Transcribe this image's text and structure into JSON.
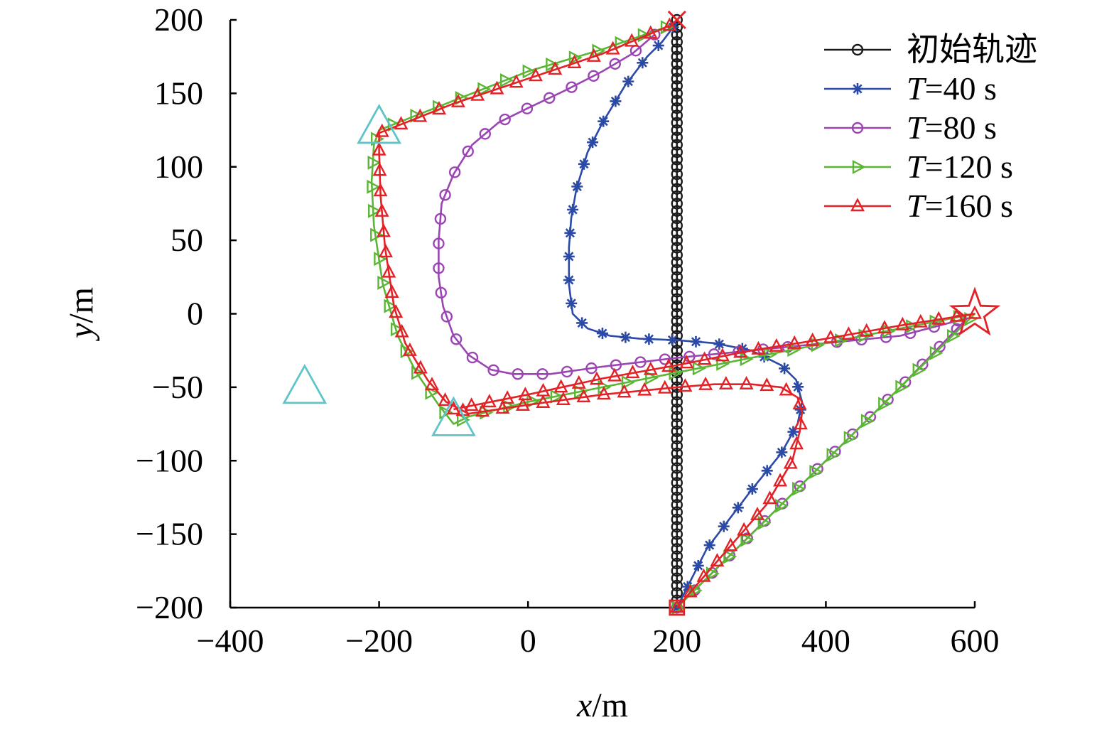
{
  "chart_data": {
    "type": "line",
    "xlabel": {
      "var": "x",
      "unit": "/m"
    },
    "ylabel": {
      "var": "y",
      "unit": "/m"
    },
    "xlim": [
      -400,
      600
    ],
    "ylim": [
      -200,
      200
    ],
    "xticks": [
      -400,
      -200,
      0,
      200,
      400,
      600
    ],
    "yticks": [
      -200,
      -150,
      -100,
      -50,
      0,
      50,
      100,
      150,
      200
    ],
    "xtick_labels": [
      "−400",
      "−200",
      "0",
      "200",
      "400",
      "600"
    ],
    "ytick_labels": [
      "−200",
      "−150",
      "−100",
      "−50",
      "0",
      "50",
      "100",
      "150",
      "200"
    ],
    "grid": false,
    "legend_position": "top-right",
    "series": [
      {
        "name": "初始轨迹",
        "legend_label": "初始轨迹",
        "legend_var": "",
        "legend_rest": "",
        "color": "#1a1a1a",
        "marker": "circle",
        "path": [
          [
            200,
            -200
          ],
          [
            200,
            200
          ]
        ],
        "marker_count": 81
      },
      {
        "name": "T=40 s",
        "legend_label": "",
        "legend_var": "T",
        "legend_rest": "=40 s",
        "color": "#2b4aa8",
        "marker": "asterisk",
        "path": [
          [
            200,
            -200
          ],
          [
            240,
            -160
          ],
          [
            300,
            -120
          ],
          [
            340,
            -95
          ],
          [
            362,
            -75
          ],
          [
            368,
            -60
          ],
          [
            360,
            -45
          ],
          [
            340,
            -35
          ],
          [
            300,
            -25
          ],
          [
            250,
            -20
          ],
          [
            200,
            -18
          ],
          [
            150,
            -17
          ],
          [
            110,
            -15
          ],
          [
            80,
            -10
          ],
          [
            60,
            0
          ],
          [
            55,
            20
          ],
          [
            55,
            45
          ],
          [
            58,
            65
          ],
          [
            65,
            85
          ],
          [
            80,
            110
          ],
          [
            100,
            130
          ],
          [
            130,
            155
          ],
          [
            160,
            175
          ],
          [
            180,
            185
          ],
          [
            195,
            195
          ]
        ],
        "marker_count": 36
      },
      {
        "name": "T=80 s",
        "legend_label": "",
        "legend_var": "T",
        "legend_rest": "=80 s",
        "color": "#9b44b3",
        "marker": "circle",
        "path": [
          [
            200,
            -200
          ],
          [
            250,
            -175
          ],
          [
            300,
            -150
          ],
          [
            400,
            -100
          ],
          [
            500,
            -50
          ],
          [
            590,
            -3
          ],
          [
            500,
            -15
          ],
          [
            400,
            -20
          ],
          [
            300,
            -25
          ],
          [
            200,
            -30
          ],
          [
            100,
            -36
          ],
          [
            30,
            -41
          ],
          [
            -20,
            -41
          ],
          [
            -50,
            -38
          ],
          [
            -80,
            -28
          ],
          [
            -100,
            -15
          ],
          [
            -114,
            5
          ],
          [
            -120,
            25
          ],
          [
            -120,
            50
          ],
          [
            -116,
            75
          ],
          [
            -100,
            95
          ],
          [
            -75,
            115
          ],
          [
            -40,
            130
          ],
          [
            0,
            140
          ],
          [
            50,
            152
          ],
          [
            100,
            165
          ],
          [
            140,
            177
          ],
          [
            170,
            190
          ]
        ],
        "marker_count": 56
      },
      {
        "name": "T=120 s",
        "legend_label": "",
        "legend_var": "T",
        "legend_rest": "=120 s",
        "color": "#5ab634",
        "marker": "triangle-right",
        "path": [
          [
            200,
            -200
          ],
          [
            400,
            -100
          ],
          [
            600,
            0
          ],
          [
            400,
            -20
          ],
          [
            200,
            -40
          ],
          [
            0,
            -60
          ],
          [
            -80,
            -70
          ],
          [
            -100,
            -75
          ],
          [
            -120,
            -62
          ],
          [
            -150,
            -40
          ],
          [
            -175,
            -15
          ],
          [
            -195,
            20
          ],
          [
            -207,
            60
          ],
          [
            -210,
            90
          ],
          [
            -207,
            115
          ],
          [
            -200,
            125
          ],
          [
            -100,
            145
          ],
          [
            0,
            165
          ],
          [
            100,
            180
          ],
          [
            185,
            195
          ]
        ],
        "marker_count": 66
      },
      {
        "name": "T=160 s",
        "legend_label": "",
        "legend_var": "T",
        "legend_rest": "=160 s",
        "color": "#e32228",
        "marker": "triangle",
        "path": [
          [
            200,
            -200
          ],
          [
            260,
            -165
          ],
          [
            320,
            -130
          ],
          [
            355,
            -100
          ],
          [
            365,
            -80
          ],
          [
            368,
            -67
          ],
          [
            362,
            -57
          ],
          [
            340,
            -50
          ],
          [
            300,
            -48
          ],
          [
            250,
            -48
          ],
          [
            200,
            -50
          ],
          [
            100,
            -55
          ],
          [
            0,
            -62
          ],
          [
            -80,
            -68
          ],
          [
            -110,
            -60
          ],
          [
            -135,
            -45
          ],
          [
            -165,
            -20
          ],
          [
            -180,
            5
          ],
          [
            -192,
            45
          ],
          [
            -198,
            80
          ],
          [
            -200,
            110
          ],
          [
            -200,
            123
          ],
          [
            -100,
            143
          ],
          [
            0,
            160
          ],
          [
            100,
            177
          ],
          [
            190,
            196
          ]
        ],
        "marker_count": 60
      },
      {
        "name": "T=160 s return",
        "legend_label": "",
        "legend_var": "",
        "legend_rest": "",
        "color": "#e32228",
        "marker": "triangle",
        "path": [
          [
            -100,
            -65
          ],
          [
            0,
            -55
          ],
          [
            100,
            -44
          ],
          [
            200,
            -35
          ],
          [
            300,
            -25
          ],
          [
            400,
            -17
          ],
          [
            500,
            -8
          ],
          [
            600,
            0
          ]
        ],
        "marker_count": 30,
        "hide_in_legend": true
      }
    ],
    "special_markers": [
      {
        "name": "start",
        "shape": "square",
        "x": 200,
        "y": -200,
        "color": "#e32228"
      },
      {
        "name": "end",
        "shape": "cross",
        "x": 200,
        "y": 200,
        "color": "#e32228"
      },
      {
        "name": "goal",
        "shape": "star",
        "x": 600,
        "y": 0,
        "color": "#e32228"
      },
      {
        "name": "obstacle-1",
        "shape": "big-triangle",
        "x": -300,
        "y": -50,
        "color": "#5fc4c8"
      },
      {
        "name": "obstacle-2",
        "shape": "big-triangle",
        "x": -200,
        "y": 127,
        "color": "#5fc4c8"
      },
      {
        "name": "obstacle-3",
        "shape": "big-triangle",
        "x": -100,
        "y": -72,
        "color": "#5fc4c8"
      }
    ]
  }
}
